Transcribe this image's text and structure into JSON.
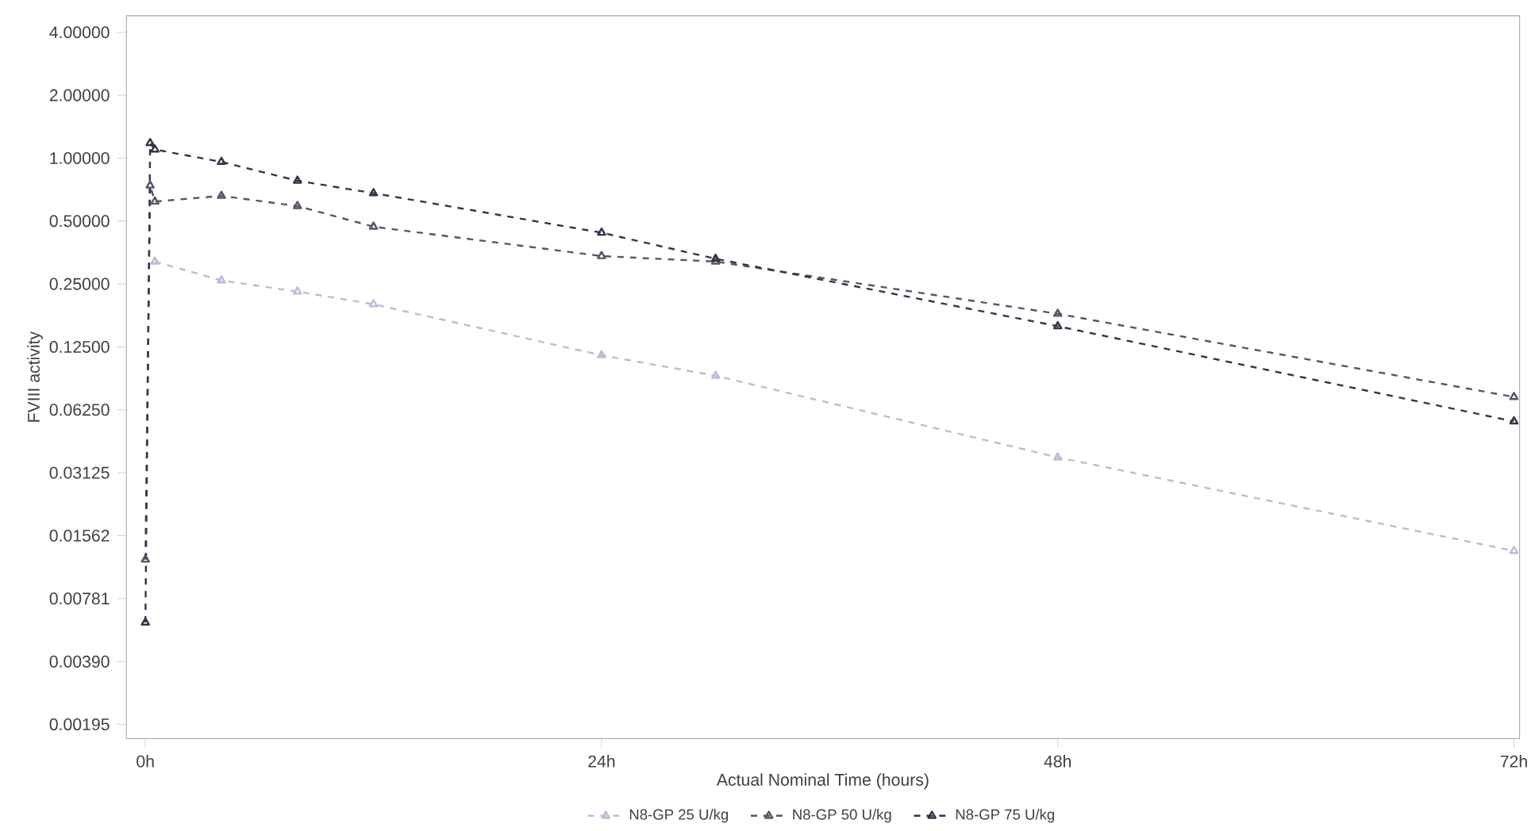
{
  "chart_data": {
    "type": "line",
    "xlabel": "Actual Nominal Time (hours)",
    "ylabel": "FVIII activity",
    "log": "y",
    "legend": "bottom",
    "marker": "triangle",
    "line_style": "dashed",
    "xlim": [
      -1,
      72.3
    ],
    "ylim": [
      0.00167,
      4.8
    ],
    "xticks": [
      {
        "value": 0,
        "label": "0h"
      },
      {
        "value": 24,
        "label": "24h"
      },
      {
        "value": 48,
        "label": "48h"
      },
      {
        "value": 72,
        "label": "72h"
      }
    ],
    "yticks": [
      {
        "value": 4,
        "label": "4.00000"
      },
      {
        "value": 2,
        "label": "2.00000"
      },
      {
        "value": 1,
        "label": "1.00000"
      },
      {
        "value": 0.5,
        "label": "0.50000"
      },
      {
        "value": 0.25,
        "label": "0.25000"
      },
      {
        "value": 0.125,
        "label": "0.12500"
      },
      {
        "value": 0.0625,
        "label": "0.06250"
      },
      {
        "value": 0.03125,
        "label": "0.03125"
      },
      {
        "value": 0.015625,
        "label": "0.01562"
      },
      {
        "value": 0.0078125,
        "label": "0.00781"
      },
      {
        "value": 0.0039,
        "label": "0.00390"
      },
      {
        "value": 0.001953125,
        "label": "0.00195"
      }
    ],
    "series": [
      {
        "name": "N8-GP 25 U/kg",
        "color": "#b8bcd8",
        "x": [
          0.5,
          4,
          8,
          12,
          24,
          30,
          48,
          72
        ],
        "values": [
          0.32,
          0.26,
          0.23,
          0.2,
          0.114,
          0.091,
          0.037,
          0.0132
        ]
      },
      {
        "name": "N8-GP 50 U/kg",
        "color": "#55556a",
        "x": [
          0,
          0.25,
          0.5,
          4,
          8,
          12,
          24,
          30,
          48,
          72
        ],
        "values": [
          0.012,
          0.74,
          0.62,
          0.66,
          0.59,
          0.47,
          0.34,
          0.32,
          0.18,
          0.072
        ]
      },
      {
        "name": "N8-GP 75 U/kg",
        "color": "#33334a",
        "x": [
          0,
          0.25,
          0.5,
          4,
          8,
          12,
          24,
          30,
          48,
          72
        ],
        "values": [
          0.006,
          1.18,
          1.1,
          0.96,
          0.78,
          0.68,
          0.44,
          0.33,
          0.157,
          0.055
        ]
      }
    ]
  }
}
